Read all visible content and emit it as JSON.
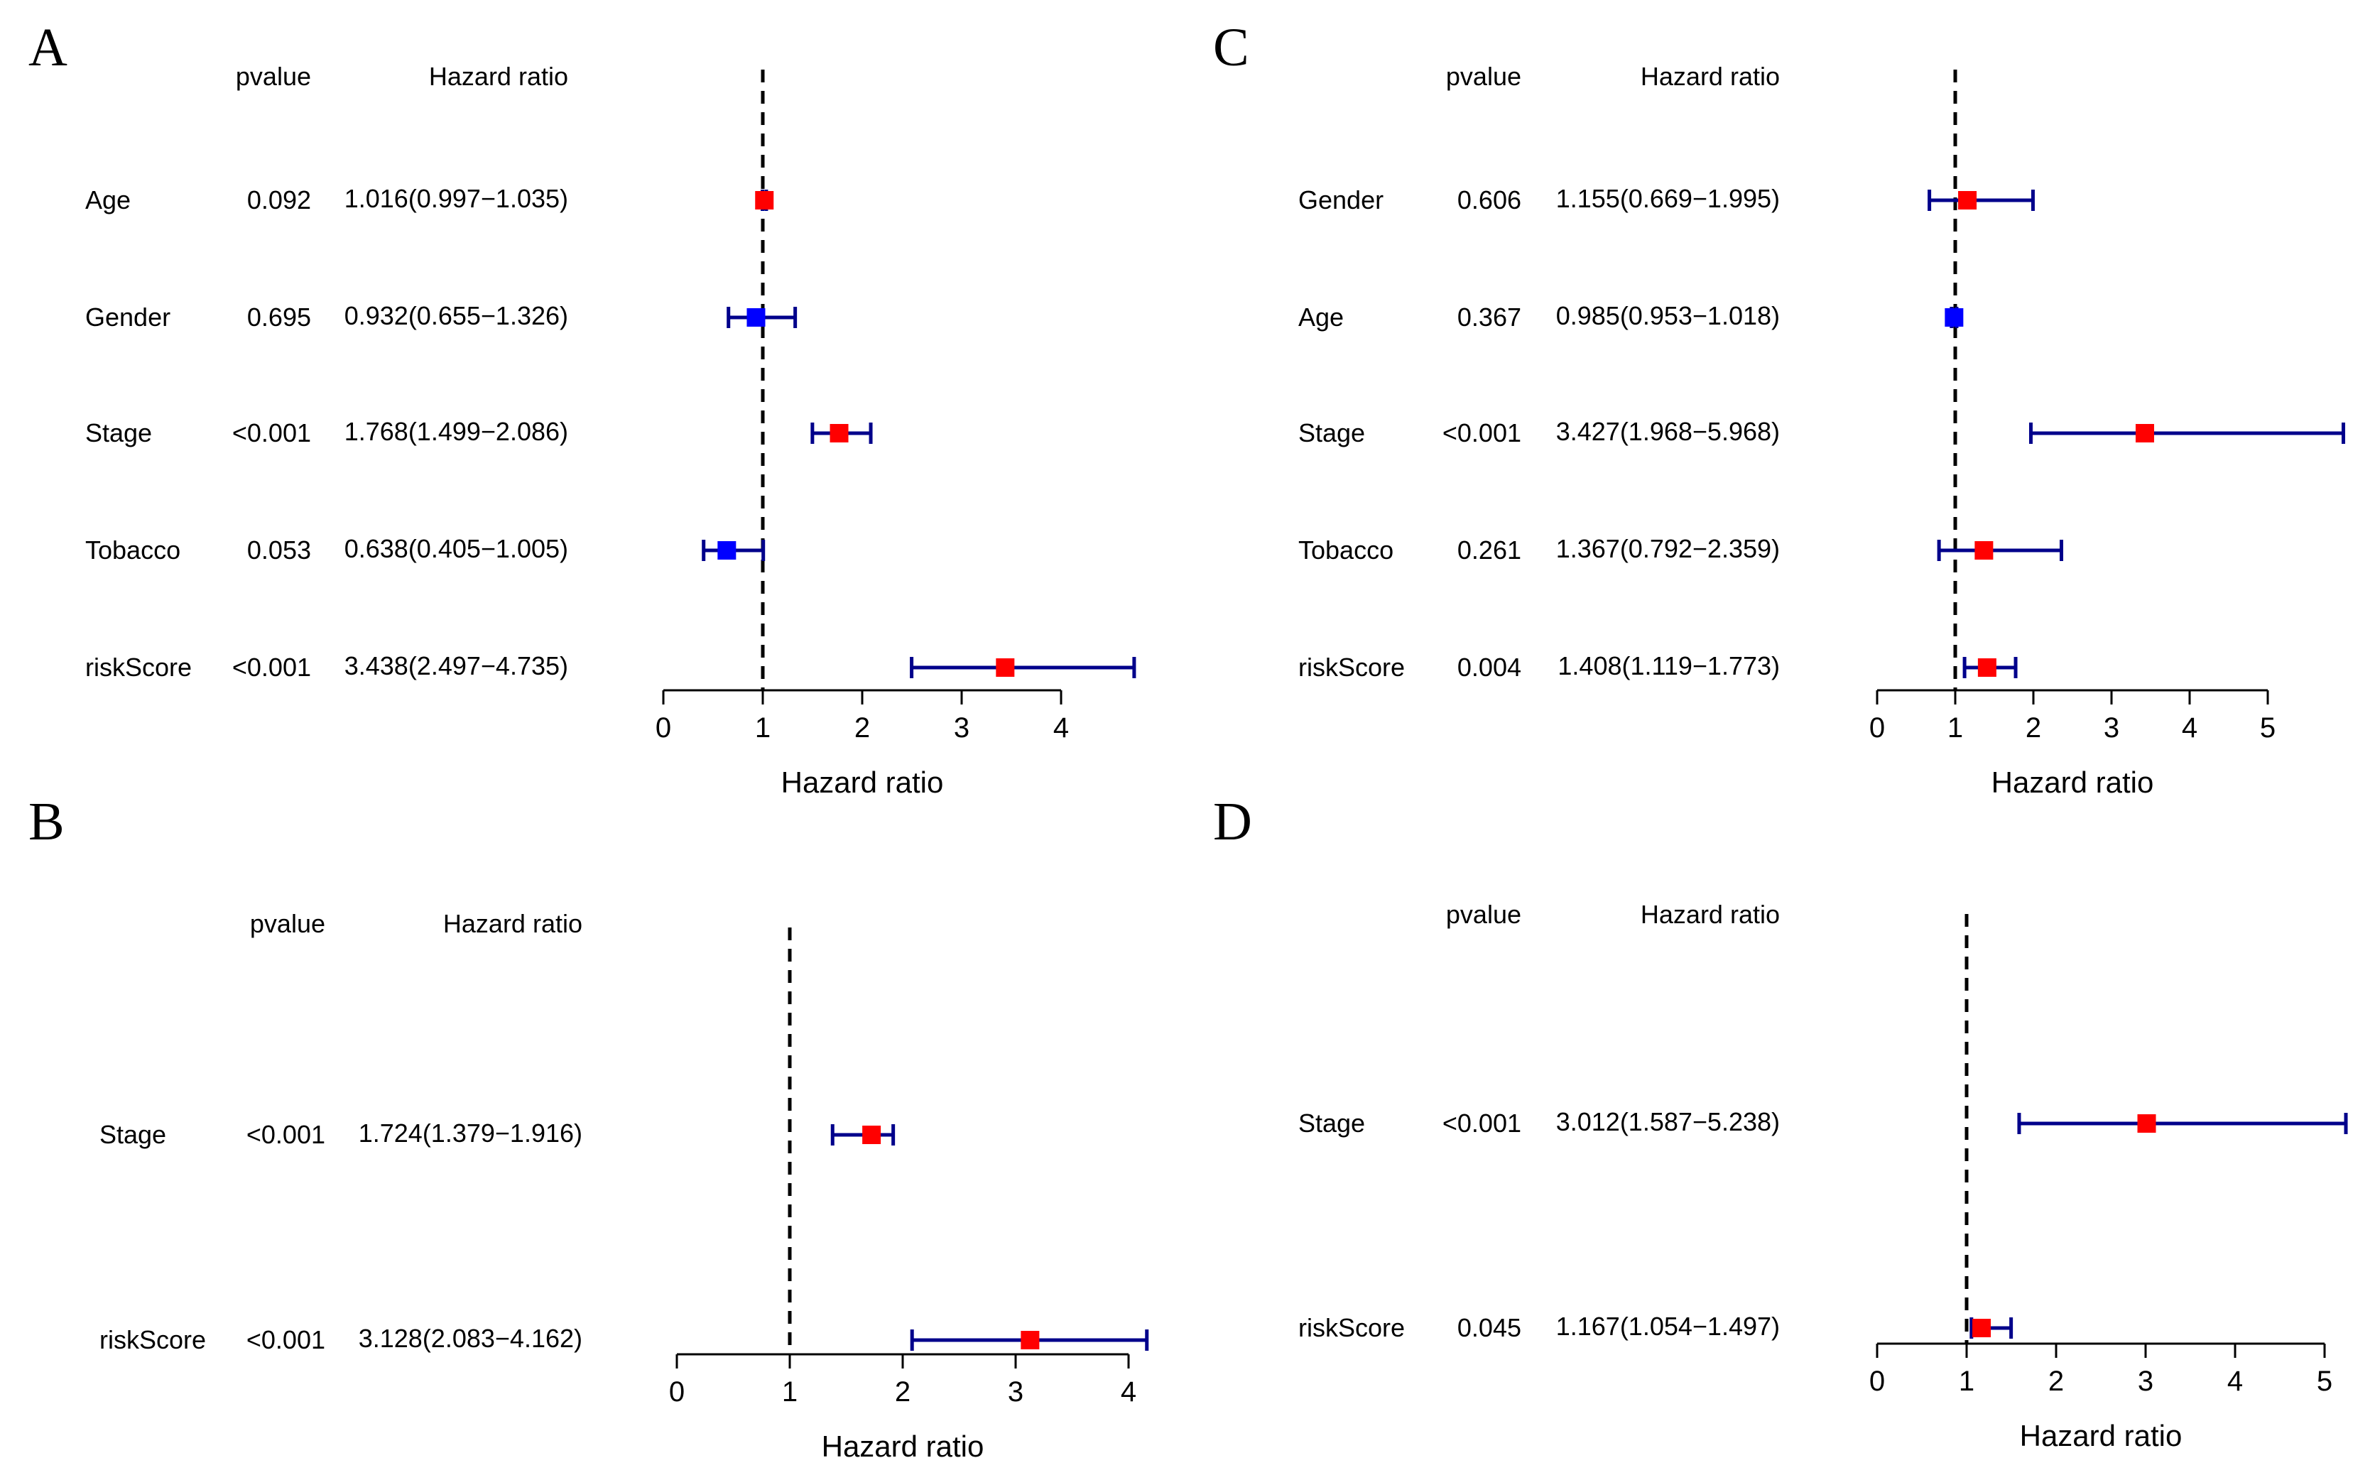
{
  "chart_data": [
    {
      "panel": "A",
      "type": "forest",
      "header": {
        "pvalue": "pvalue",
        "hazard_ratio": "Hazard ratio"
      },
      "xlabel": "Hazard ratio",
      "xticks": [
        0,
        1,
        2,
        3,
        4
      ],
      "xlim": [
        0,
        4.735
      ],
      "reference_line": 1,
      "rows": [
        {
          "label": "Age",
          "pvalue": "0.092",
          "hr_text": "1.016(0.997−1.035)",
          "hr": 1.016,
          "lower": 0.997,
          "upper": 1.035,
          "color": "#ff0000"
        },
        {
          "label": "Gender",
          "pvalue": "0.695",
          "hr_text": "0.932(0.655−1.326)",
          "hr": 0.932,
          "lower": 0.655,
          "upper": 1.326,
          "color": "#0000ff"
        },
        {
          "label": "Stage",
          "pvalue": "<0.001",
          "hr_text": "1.768(1.499−2.086)",
          "hr": 1.768,
          "lower": 1.499,
          "upper": 2.086,
          "color": "#ff0000"
        },
        {
          "label": "Tobacco",
          "pvalue": "0.053",
          "hr_text": "0.638(0.405−1.005)",
          "hr": 0.638,
          "lower": 0.405,
          "upper": 1.005,
          "color": "#0000ff"
        },
        {
          "label": "riskScore",
          "pvalue": "<0.001",
          "hr_text": "3.438(2.497−4.735)",
          "hr": 3.438,
          "lower": 2.497,
          "upper": 4.735,
          "color": "#ff0000"
        }
      ]
    },
    {
      "panel": "C",
      "type": "forest",
      "header": {
        "pvalue": "pvalue",
        "hazard_ratio": "Hazard ratio"
      },
      "xlabel": "Hazard ratio",
      "xticks": [
        0,
        1,
        2,
        3,
        4,
        5
      ],
      "xlim": [
        0,
        5.968
      ],
      "reference_line": 1,
      "rows": [
        {
          "label": "Gender",
          "pvalue": "0.606",
          "hr_text": "1.155(0.669−1.995)",
          "hr": 1.155,
          "lower": 0.669,
          "upper": 1.995,
          "color": "#ff0000"
        },
        {
          "label": "Age",
          "pvalue": "0.367",
          "hr_text": "0.985(0.953−1.018)",
          "hr": 0.985,
          "lower": 0.953,
          "upper": 1.018,
          "color": "#0000ff"
        },
        {
          "label": "Stage",
          "pvalue": "<0.001",
          "hr_text": "3.427(1.968−5.968)",
          "hr": 3.427,
          "lower": 1.968,
          "upper": 5.968,
          "color": "#ff0000"
        },
        {
          "label": "Tobacco",
          "pvalue": "0.261",
          "hr_text": "1.367(0.792−2.359)",
          "hr": 1.367,
          "lower": 0.792,
          "upper": 2.359,
          "color": "#ff0000"
        },
        {
          "label": "riskScore",
          "pvalue": "0.004",
          "hr_text": "1.408(1.119−1.773)",
          "hr": 1.408,
          "lower": 1.119,
          "upper": 1.773,
          "color": "#ff0000"
        }
      ]
    },
    {
      "panel": "B",
      "type": "forest",
      "header": {
        "pvalue": "pvalue",
        "hazard_ratio": "Hazard ratio"
      },
      "xlabel": "Hazard ratio",
      "xticks": [
        0,
        1,
        2,
        3,
        4
      ],
      "xlim": [
        0,
        4.162
      ],
      "reference_line": 1,
      "rows": [
        {
          "label": "Stage",
          "pvalue": "<0.001",
          "hr_text": "1.724(1.379−1.916)",
          "hr": 1.724,
          "lower": 1.379,
          "upper": 1.916,
          "color": "#ff0000"
        },
        {
          "label": "riskScore",
          "pvalue": "<0.001",
          "hr_text": "3.128(2.083−4.162)",
          "hr": 3.128,
          "lower": 2.083,
          "upper": 4.162,
          "color": "#ff0000"
        }
      ]
    },
    {
      "panel": "D",
      "type": "forest",
      "header": {
        "pvalue": "pvalue",
        "hazard_ratio": "Hazard ratio"
      },
      "xlabel": "Hazard ratio",
      "xticks": [
        0,
        1,
        2,
        3,
        4,
        5
      ],
      "xlim": [
        0,
        5.238
      ],
      "reference_line": 1,
      "rows": [
        {
          "label": "Stage",
          "pvalue": "<0.001",
          "hr_text": "3.012(1.587−5.238)",
          "hr": 3.012,
          "lower": 1.587,
          "upper": 5.238,
          "color": "#ff0000"
        },
        {
          "label": "riskScore",
          "pvalue": "0.045",
          "hr_text": "1.167(1.054−1.497)",
          "hr": 1.167,
          "lower": 1.054,
          "upper": 1.497,
          "color": "#ff0000"
        }
      ]
    }
  ],
  "ci_color": "#00008b"
}
